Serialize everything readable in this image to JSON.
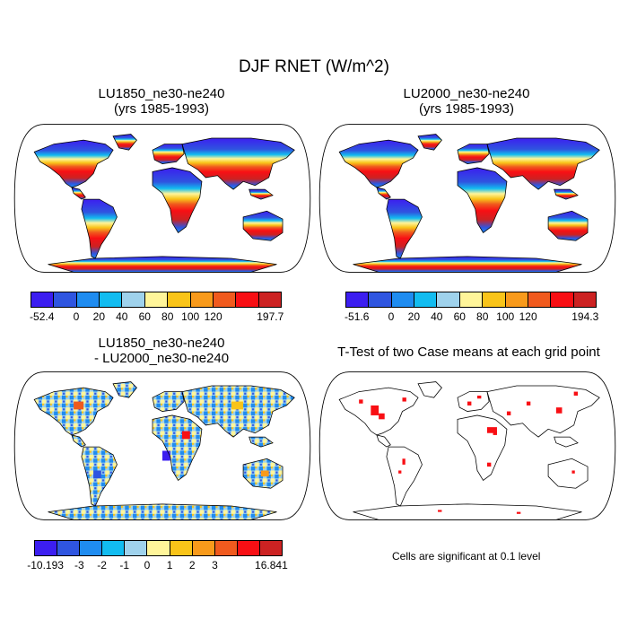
{
  "title": "DJF RNET (W/m^2)",
  "panels": {
    "p1": {
      "title1": "LU1850_ne30-ne240",
      "title2": "(yrs 1985-1993)"
    },
    "p2": {
      "title1": "LU2000_ne30-ne240",
      "title2": "(yrs 1985-1993)"
    },
    "p3": {
      "title1": "LU1850_ne30-ne240",
      "title2": "- LU2000_ne30-ne240"
    },
    "p4": {
      "title1": "T-Test of two Case means at each grid point"
    }
  },
  "colorbars": {
    "cb1": {
      "colors": [
        "#3c1ef0",
        "#2f55e0",
        "#1f8cf0",
        "#12bcf0",
        "#9fd2ec",
        "#fff59a",
        "#f9c419",
        "#f89a1b",
        "#f05a1e",
        "#f80f14",
        "#cc2222"
      ],
      "labels": [
        "-52.4",
        "0",
        "20",
        "40",
        "60",
        "80",
        "100",
        "120",
        "197.7"
      ]
    },
    "cb2": {
      "colors": [
        "#3c1ef0",
        "#2f55e0",
        "#1f8cf0",
        "#12bcf0",
        "#9fd2ec",
        "#fff59a",
        "#f9c419",
        "#f89a1b",
        "#f05a1e",
        "#f80f14",
        "#cc2222"
      ],
      "labels": [
        "-51.6",
        "0",
        "20",
        "40",
        "60",
        "80",
        "100",
        "120",
        "194.3"
      ]
    },
    "cb3": {
      "colors": [
        "#3c1ef0",
        "#2f55e0",
        "#1f8cf0",
        "#12bcf0",
        "#9fd2ec",
        "#fff59a",
        "#f9c419",
        "#f89a1b",
        "#f05a1e",
        "#f80f14",
        "#cc2222"
      ],
      "labels": [
        "-10.193",
        "-3",
        "-2",
        "-1",
        "0",
        "1",
        "2",
        "3",
        "16.841"
      ]
    }
  },
  "significance_note": "Cells are significant at 0.1 level"
}
